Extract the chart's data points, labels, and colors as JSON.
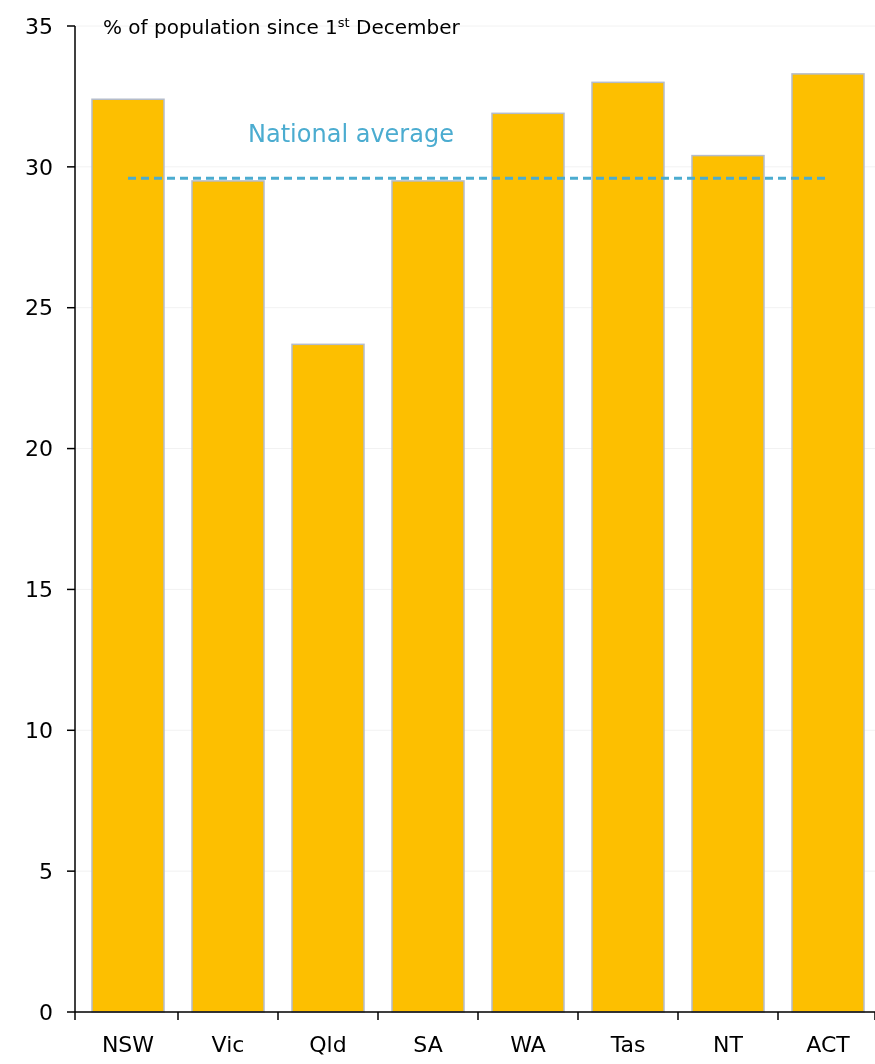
{
  "chart_data": {
    "type": "bar",
    "title": "% of population since 1$^{st}$ December",
    "categories": [
      "NSW",
      "Vic",
      "Qld",
      "SA",
      "WA",
      "Tas",
      "NT",
      "ACT"
    ],
    "values": [
      32.4,
      29.5,
      23.7,
      29.5,
      31.9,
      33.0,
      30.4,
      33.3
    ],
    "color": "#fdbf00",
    "ylim": [
      0,
      35
    ],
    "yticks": [
      0,
      5,
      10,
      15,
      20,
      25,
      30,
      35
    ],
    "grid": "y",
    "ref_lines": [
      {
        "axis": "y",
        "value": 29.6,
        "label": "National average",
        "color": "#4bacd0",
        "line_style": "dashed"
      }
    ]
  }
}
